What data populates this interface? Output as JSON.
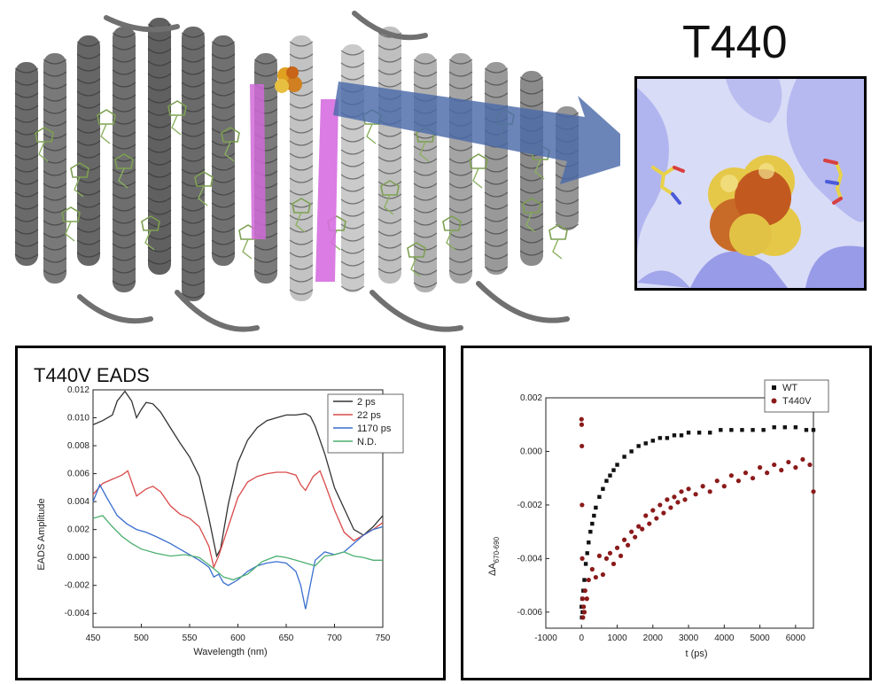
{
  "zoom": {
    "title": "T440"
  },
  "chart_data": [
    {
      "type": "line",
      "title": "T440V EADS",
      "xlabel": "Wavelength (nm)",
      "ylabel": "EADS Amplitude",
      "xlim": [
        450,
        750
      ],
      "ylim": [
        -0.005,
        0.012
      ],
      "xticks": [
        450,
        500,
        550,
        600,
        650,
        700,
        750
      ],
      "yticks": [
        -0.004,
        -0.002,
        0.0,
        0.002,
        0.004,
        0.006,
        0.008,
        0.01,
        0.012
      ],
      "ytick_labels": [
        "-0.004",
        "-0.002",
        "0.000",
        "0.002",
        "0.004",
        "0.006",
        "0.008",
        "0.010",
        "0.012"
      ],
      "legend_position": "top-right",
      "series": [
        {
          "name": "2 ps",
          "color": "#333333",
          "x": [
            450,
            460,
            470,
            475,
            483,
            490,
            495,
            500,
            505,
            512,
            520,
            530,
            540,
            550,
            560,
            570,
            578,
            582,
            590,
            600,
            610,
            620,
            630,
            640,
            650,
            660,
            670,
            675,
            680,
            690,
            700,
            710,
            720,
            730,
            740,
            750
          ],
          "y": [
            0.0095,
            0.0098,
            0.0102,
            0.0112,
            0.0119,
            0.0112,
            0.01,
            0.0106,
            0.0111,
            0.011,
            0.0104,
            0.0093,
            0.0082,
            0.0072,
            0.0058,
            0.0028,
            0.0001,
            0.0006,
            0.0038,
            0.0068,
            0.0084,
            0.0093,
            0.0098,
            0.01,
            0.0102,
            0.0102,
            0.0103,
            0.0101,
            0.0094,
            0.0074,
            0.005,
            0.0035,
            0.002,
            0.0016,
            0.0022,
            0.003
          ]
        },
        {
          "name": "22 ps",
          "color": "#d94a4a",
          "x": [
            450,
            460,
            470,
            480,
            486,
            495,
            505,
            512,
            520,
            530,
            540,
            550,
            560,
            570,
            575,
            580,
            590,
            600,
            610,
            620,
            630,
            640,
            650,
            660,
            665,
            670,
            678,
            685,
            690,
            700,
            710,
            720,
            730,
            740,
            750
          ],
          "y": [
            0.0045,
            0.0053,
            0.0056,
            0.0059,
            0.0062,
            0.0044,
            0.0049,
            0.0051,
            0.0047,
            0.0037,
            0.0031,
            0.0028,
            0.0022,
            0.0008,
            -0.0007,
            0.0001,
            0.0022,
            0.0043,
            0.0054,
            0.0058,
            0.006,
            0.0061,
            0.0061,
            0.0059,
            0.0052,
            0.0048,
            0.0058,
            0.0062,
            0.0053,
            0.0034,
            0.0018,
            0.0012,
            0.0016,
            0.002,
            0.0025
          ]
        },
        {
          "name": "1170 ps",
          "color": "#3a6fcf",
          "x": [
            450,
            457,
            465,
            475,
            485,
            495,
            505,
            515,
            530,
            545,
            560,
            570,
            575,
            580,
            585,
            590,
            600,
            610,
            620,
            630,
            640,
            650,
            660,
            665,
            670,
            674,
            680,
            690,
            700,
            710,
            720,
            730,
            740,
            750
          ],
          "y": [
            0.004,
            0.0052,
            0.0042,
            0.003,
            0.0024,
            0.002,
            0.0018,
            0.0015,
            0.001,
            0.0004,
            -0.0002,
            -0.0007,
            -0.0014,
            -0.0012,
            -0.0018,
            -0.002,
            -0.0016,
            -0.001,
            -0.0006,
            -0.0004,
            -0.0003,
            -0.0004,
            -0.001,
            -0.002,
            -0.0037,
            -0.0023,
            -0.0002,
            0.0004,
            0.0002,
            0.0004,
            0.001,
            0.0016,
            0.002,
            0.0022
          ]
        },
        {
          "name": "N.D.",
          "color": "#4caf6f",
          "x": [
            450,
            460,
            470,
            480,
            490,
            500,
            515,
            530,
            545,
            560,
            575,
            585,
            595,
            610,
            625,
            640,
            650,
            660,
            670,
            680,
            690,
            700,
            710,
            720,
            730,
            740,
            750
          ],
          "y": [
            0.0028,
            0.003,
            0.0022,
            0.0015,
            0.001,
            0.0006,
            0.0003,
            0.0001,
            0.0002,
            0.0,
            -0.0008,
            -0.0014,
            -0.0016,
            -0.0012,
            -0.0003,
            0.0001,
            0.0,
            -0.0002,
            -0.0004,
            -0.0006,
            0.0001,
            0.0002,
            0.0004,
            0.0001,
            0.0,
            -0.0002,
            -0.0002
          ]
        }
      ]
    },
    {
      "type": "scatter",
      "title": "",
      "xlabel": "t (ps)",
      "ylabel": "ΔA",
      "ylabel_sub": "670-690",
      "xlim": [
        -1000,
        6500
      ],
      "ylim": [
        -0.0066,
        0.002
      ],
      "xticks": [
        -1000,
        0,
        1000,
        2000,
        3000,
        4000,
        5000,
        6000
      ],
      "yticks": [
        -0.006,
        -0.004,
        -0.002,
        0.0,
        0.002
      ],
      "ytick_labels": [
        "-0.006",
        "-0.004",
        "-0.002",
        "0.000",
        "0.002"
      ],
      "legend_position": "top-right",
      "series": [
        {
          "name": "WT",
          "color": "#111111",
          "marker": "square",
          "t": [
            0,
            10,
            20,
            30,
            50,
            80,
            120,
            160,
            200,
            250,
            300,
            350,
            400,
            500,
            600,
            700,
            800,
            900,
            1000,
            1200,
            1400,
            1600,
            1800,
            2000,
            2200,
            2400,
            2600,
            2800,
            3000,
            3300,
            3600,
            3900,
            4200,
            4500,
            4800,
            5100,
            5400,
            5700,
            6000,
            6300,
            6500
          ],
          "y": [
            -0.0058,
            -0.0062,
            -0.0055,
            -0.006,
            -0.0052,
            -0.0048,
            -0.0042,
            -0.0038,
            -0.0034,
            -0.003,
            -0.0027,
            -0.0024,
            -0.0021,
            -0.0017,
            -0.0014,
            -0.0011,
            -0.0009,
            -0.0007,
            -0.0005,
            -0.0002,
            0.0,
            0.0002,
            0.0003,
            0.0004,
            0.0005,
            0.0005,
            0.0006,
            0.0006,
            0.0007,
            0.0007,
            0.0007,
            0.0008,
            0.0008,
            0.0008,
            0.0008,
            0.0008,
            0.0009,
            0.0009,
            0.0009,
            0.0008,
            0.0008
          ]
        },
        {
          "name": "T440V",
          "color": "#8b1a1a",
          "marker": "circle",
          "t": [
            0,
            5,
            10,
            15,
            20,
            30,
            40,
            60,
            80,
            100,
            150,
            200,
            300,
            400,
            500,
            600,
            700,
            800,
            900,
            1000,
            1100,
            1200,
            1300,
            1400,
            1500,
            1600,
            1700,
            1800,
            1900,
            2000,
            2100,
            2200,
            2300,
            2400,
            2500,
            2600,
            2700,
            2800,
            2900,
            3000,
            3200,
            3400,
            3600,
            3800,
            4000,
            4200,
            4400,
            4600,
            4800,
            5000,
            5200,
            5400,
            5600,
            5800,
            6000,
            6200,
            6400,
            6500
          ],
          "y": [
            0.0012,
            0.001,
            0.0002,
            -0.002,
            -0.004,
            -0.0055,
            -0.0062,
            -0.0058,
            -0.006,
            -0.0052,
            -0.0055,
            -0.0048,
            -0.0044,
            -0.0047,
            -0.0039,
            -0.0046,
            -0.004,
            -0.0038,
            -0.0042,
            -0.0036,
            -0.0039,
            -0.0033,
            -0.0035,
            -0.003,
            -0.0032,
            -0.0028,
            -0.0029,
            -0.0024,
            -0.0027,
            -0.0022,
            -0.0025,
            -0.002,
            -0.0023,
            -0.0018,
            -0.0021,
            -0.0017,
            -0.0019,
            -0.0015,
            -0.0018,
            -0.0014,
            -0.0016,
            -0.0013,
            -0.0015,
            -0.0011,
            -0.0013,
            -0.0009,
            -0.0011,
            -0.0008,
            -0.001,
            -0.0006,
            -0.0008,
            -0.0005,
            -0.0007,
            -0.0004,
            -0.0006,
            -0.0003,
            -0.0005,
            -0.0015
          ]
        }
      ]
    }
  ]
}
